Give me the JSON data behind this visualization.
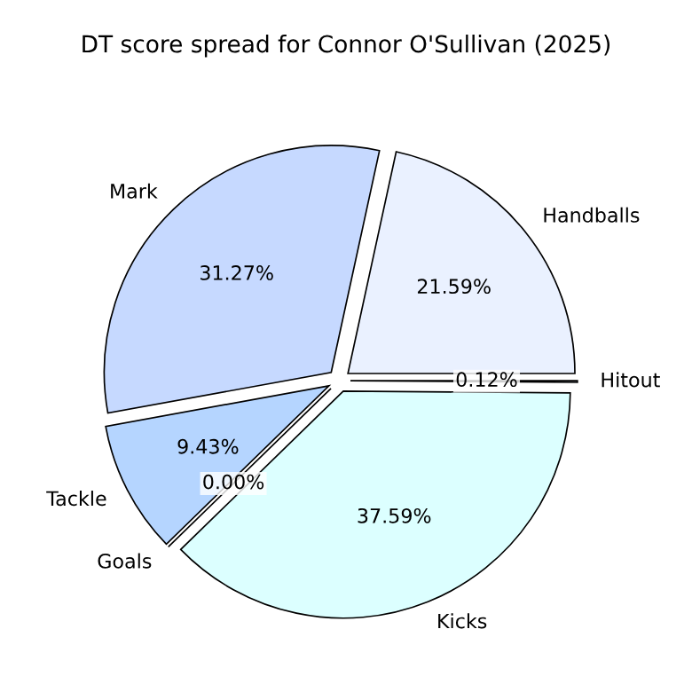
{
  "chart_data": {
    "type": "pie",
    "title": "DT score spread for Connor O'Sullivan (2025)",
    "categories": [
      "Handballs",
      "Mark",
      "Tackle",
      "Goals",
      "Kicks",
      "Hitout"
    ],
    "values": [
      21.59,
      31.27,
      9.43,
      0.0,
      37.59,
      0.12
    ],
    "value_labels": [
      "21.59%",
      "31.27%",
      "9.43%",
      "0.00%",
      "37.59%",
      "0.12%"
    ],
    "colors": [
      "#eaf1ff",
      "#c6d9ff",
      "#b5d5ff",
      "#cce6ff",
      "#dcffff",
      "#e0ecff"
    ],
    "legend": false
  }
}
